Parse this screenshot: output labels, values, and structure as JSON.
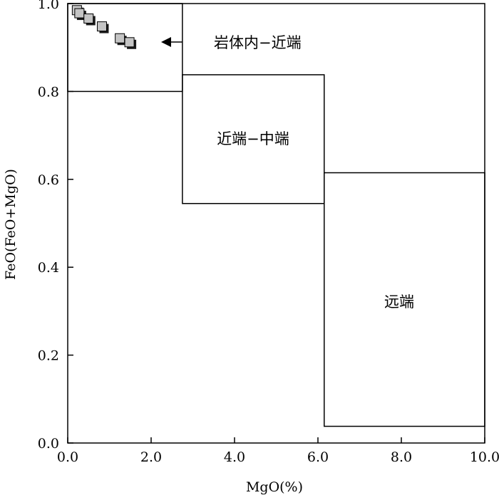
{
  "chart_data": {
    "type": "scatter",
    "xlabel": "MgO(%)",
    "ylabel": "FeO(FeO+MgO)",
    "xlim": [
      0,
      10
    ],
    "ylim": [
      0,
      1
    ],
    "x_ticks": [
      {
        "value": 0,
        "label": "0.0"
      },
      {
        "value": 2,
        "label": "2.0"
      },
      {
        "value": 4,
        "label": "4.0"
      },
      {
        "value": 6,
        "label": "6.0"
      },
      {
        "value": 8,
        "label": "8.0"
      },
      {
        "value": 10,
        "label": "10.0"
      }
    ],
    "y_ticks": [
      {
        "value": 0,
        "label": "0.0"
      },
      {
        "value": 0.2,
        "label": "0.2"
      },
      {
        "value": 0.4,
        "label": "0.4"
      },
      {
        "value": 0.6,
        "label": "0.6"
      },
      {
        "value": 0.8,
        "label": "0.8"
      },
      {
        "value": 1.0,
        "label": "1.0"
      }
    ],
    "points": [
      {
        "x": 0.22,
        "y": 0.985
      },
      {
        "x": 0.28,
        "y": 0.978
      },
      {
        "x": 0.5,
        "y": 0.966
      },
      {
        "x": 0.82,
        "y": 0.948
      },
      {
        "x": 1.25,
        "y": 0.921
      },
      {
        "x": 1.48,
        "y": 0.912
      }
    ],
    "regions": [
      {
        "label": "岩体内−近端",
        "x0": 0,
        "x1": 2.75,
        "y0": 0.8,
        "y1": 1.0
      },
      {
        "label": "近端−中端",
        "x0": 2.75,
        "x1": 6.15,
        "y0": 0.545,
        "y1": 0.838
      },
      {
        "label": "远端",
        "x0": 6.15,
        "x1": 10,
        "y0": 0.038,
        "y1": 0.615
      }
    ]
  }
}
